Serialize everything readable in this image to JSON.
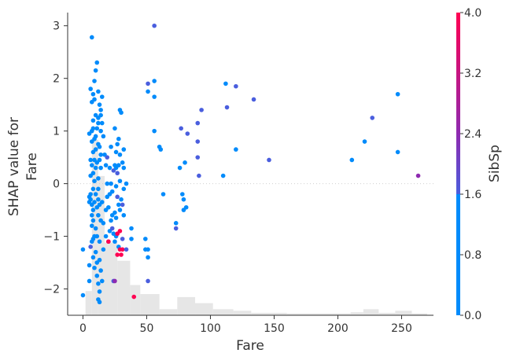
{
  "chart_data": {
    "type": "scatter",
    "xlabel": "Fare",
    "ylabel": "SHAP value for\nFare",
    "xlim": [
      -12,
      275
    ],
    "ylim": [
      -2.5,
      3.25
    ],
    "xticks": [
      0,
      50,
      100,
      150,
      200,
      250
    ],
    "yticks": [
      -2,
      -1,
      0,
      1,
      2,
      3
    ],
    "zero_line": true,
    "histogram_background": true,
    "colorbar": {
      "label": "SibSp",
      "min": 0.0,
      "max": 4.0,
      "ticks": [
        "0.0",
        "0.8",
        "1.6",
        "2.4",
        "3.2",
        "4.0"
      ],
      "colors": [
        "#008bfb",
        "#4a5ede",
        "#8e2ab0",
        "#ff0052"
      ]
    },
    "histogram": {
      "bins": [
        [
          2,
          7,
          0.08
        ],
        [
          7,
          12,
          0.58
        ],
        [
          12,
          17,
          0.46
        ],
        [
          17,
          27,
          0.24
        ],
        [
          27,
          37,
          0.18
        ],
        [
          37,
          45,
          0.1
        ],
        [
          45,
          60,
          0.07
        ],
        [
          60,
          74,
          0.02
        ],
        [
          74,
          88,
          0.06
        ],
        [
          88,
          102,
          0.04
        ],
        [
          102,
          118,
          0.02
        ],
        [
          118,
          132,
          0.015
        ],
        [
          132,
          160,
          0.008
        ],
        [
          160,
          210,
          0.006
        ],
        [
          210,
          220,
          0.01
        ],
        [
          220,
          232,
          0.02
        ],
        [
          232,
          245,
          0.008
        ],
        [
          245,
          258,
          0.015
        ],
        [
          258,
          270,
          0.006
        ]
      ]
    },
    "points": [
      [
        0,
        -1.25,
        0
      ],
      [
        0,
        -2.12,
        0
      ],
      [
        5,
        -0.25,
        0
      ],
      [
        5,
        0.95,
        0
      ],
      [
        5,
        -1.85,
        0
      ],
      [
        5,
        -0.35,
        0
      ],
      [
        5,
        -1.55,
        0
      ],
      [
        6,
        0.45,
        0
      ],
      [
        6,
        0.15,
        0
      ],
      [
        6,
        -0.3,
        0
      ],
      [
        6,
        1.8,
        0
      ],
      [
        6,
        -0.2,
        0
      ],
      [
        6,
        -1.2,
        1
      ],
      [
        7,
        2.78,
        0
      ],
      [
        7,
        1.55,
        0
      ],
      [
        7,
        0.8,
        0
      ],
      [
        7,
        0.35,
        0
      ],
      [
        7,
        -0.4,
        0
      ],
      [
        7,
        -1.1,
        0
      ],
      [
        7,
        -0.6,
        0
      ],
      [
        7,
        1.0,
        0
      ],
      [
        7,
        -0.8,
        0
      ],
      [
        8,
        1.7,
        0
      ],
      [
        8,
        1.2,
        0
      ],
      [
        8,
        0.6,
        0
      ],
      [
        8,
        -0.1,
        0
      ],
      [
        8,
        -0.5,
        0
      ],
      [
        8,
        -1.4,
        0
      ],
      [
        8,
        0.2,
        0
      ],
      [
        8,
        -0.7,
        0
      ],
      [
        8,
        1.05,
        0
      ],
      [
        8,
        -1.05,
        0
      ],
      [
        9,
        1.95,
        0
      ],
      [
        9,
        1.6,
        0
      ],
      [
        9,
        0.85,
        0
      ],
      [
        9,
        0.45,
        0
      ],
      [
        9,
        -0.35,
        0
      ],
      [
        9,
        -1.0,
        0
      ],
      [
        9,
        -1.6,
        0
      ],
      [
        9,
        0.05,
        0
      ],
      [
        10,
        2.15,
        0
      ],
      [
        10,
        1.3,
        0
      ],
      [
        10,
        0.9,
        0
      ],
      [
        10,
        0.3,
        0
      ],
      [
        10,
        -0.2,
        0
      ],
      [
        10,
        -0.85,
        0
      ],
      [
        10,
        -1.3,
        0
      ],
      [
        10,
        0.65,
        0
      ],
      [
        11,
        2.3,
        0
      ],
      [
        11,
        1.05,
        0
      ],
      [
        11,
        0.4,
        0
      ],
      [
        11,
        -0.45,
        0
      ],
      [
        11,
        -1.0,
        0
      ],
      [
        11,
        -1.75,
        0
      ],
      [
        11,
        -1.5,
        0
      ],
      [
        12,
        1.75,
        0
      ],
      [
        12,
        1.25,
        0
      ],
      [
        12,
        1.15,
        0
      ],
      [
        12,
        0.75,
        0
      ],
      [
        12,
        0.1,
        0
      ],
      [
        12,
        -0.3,
        0
      ],
      [
        12,
        -0.6,
        0
      ],
      [
        12,
        -1.9,
        0
      ],
      [
        12,
        -2.2,
        0
      ],
      [
        12,
        -0.1,
        0
      ],
      [
        13,
        1.5,
        0
      ],
      [
        13,
        0.7,
        0
      ],
      [
        13,
        -0.4,
        0
      ],
      [
        13,
        -1.1,
        0
      ],
      [
        13,
        -2.25,
        0
      ],
      [
        13,
        -1.45,
        0
      ],
      [
        13,
        -2.05,
        0
      ],
      [
        13,
        0.45,
        0
      ],
      [
        14,
        1.4,
        0
      ],
      [
        14,
        1.3,
        0
      ],
      [
        14,
        1.0,
        0
      ],
      [
        14,
        0.3,
        0
      ],
      [
        14,
        -0.7,
        0
      ],
      [
        14,
        -1.65,
        0
      ],
      [
        14,
        0.55,
        0
      ],
      [
        15,
        1.65,
        0
      ],
      [
        15,
        1.15,
        0
      ],
      [
        15,
        -0.35,
        0
      ],
      [
        15,
        -1.85,
        0
      ],
      [
        16,
        0.9,
        0
      ],
      [
        16,
        -0.75,
        0
      ],
      [
        16,
        -1.25,
        0
      ],
      [
        17,
        0.55,
        0
      ],
      [
        18,
        0.35,
        0
      ],
      [
        18,
        -0.5,
        0
      ],
      [
        18,
        -1.0,
        0
      ],
      [
        19,
        0.5,
        1
      ],
      [
        19,
        0.0,
        0
      ],
      [
        19,
        -0.25,
        0
      ],
      [
        20,
        -0.45,
        0
      ],
      [
        20,
        -1.1,
        1
      ],
      [
        20,
        -1.1,
        3
      ],
      [
        21,
        0.3,
        0
      ],
      [
        21,
        -0.2,
        0
      ],
      [
        21,
        -0.9,
        0
      ],
      [
        22,
        0.7,
        0
      ],
      [
        22,
        0.0,
        0
      ],
      [
        22,
        -0.7,
        0
      ],
      [
        23,
        -0.6,
        0
      ],
      [
        23,
        -0.15,
        0
      ],
      [
        23,
        -0.85,
        1
      ],
      [
        24,
        0.25,
        1
      ],
      [
        24,
        -0.95,
        0
      ],
      [
        24,
        -1.85,
        1
      ],
      [
        25,
        1.05,
        0
      ],
      [
        25,
        0.35,
        0
      ],
      [
        25,
        -0.55,
        0
      ],
      [
        25,
        -1.1,
        0
      ],
      [
        25,
        -1.85,
        2
      ],
      [
        26,
        0.6,
        0
      ],
      [
        26,
        0.3,
        0
      ],
      [
        26,
        -0.05,
        0
      ],
      [
        26,
        -0.65,
        0
      ],
      [
        26,
        -1.0,
        0
      ],
      [
        27,
        0.75,
        0
      ],
      [
        27,
        0.2,
        1
      ],
      [
        27,
        -0.25,
        1
      ],
      [
        27,
        -0.95,
        3
      ],
      [
        27,
        -1.35,
        3
      ],
      [
        28,
        0.85,
        0
      ],
      [
        28,
        0.35,
        0
      ],
      [
        28,
        -0.4,
        0
      ],
      [
        28,
        -1.2,
        0
      ],
      [
        29,
        1.4,
        0
      ],
      [
        29,
        0.55,
        0
      ],
      [
        29,
        0.05,
        0
      ],
      [
        29,
        -0.5,
        0
      ],
      [
        29,
        -0.9,
        3
      ],
      [
        29,
        -1.25,
        3
      ],
      [
        30,
        1.35,
        0
      ],
      [
        30,
        -0.3,
        0
      ],
      [
        30,
        -1.35,
        3
      ],
      [
        31,
        0.4,
        0
      ],
      [
        31,
        -0.4,
        1
      ],
      [
        31,
        -1.05,
        1
      ],
      [
        31,
        -1.25,
        3
      ],
      [
        32,
        0.65,
        0
      ],
      [
        32,
        0.3,
        0
      ],
      [
        32,
        -0.1,
        0
      ],
      [
        32,
        -0.6,
        0
      ],
      [
        34,
        -1.25,
        1
      ],
      [
        34,
        0.0,
        0
      ],
      [
        38,
        -0.85,
        0
      ],
      [
        38,
        -1.05,
        0
      ],
      [
        40,
        -2.15,
        3
      ],
      [
        49,
        -1.05,
        0
      ],
      [
        49,
        -1.25,
        0
      ],
      [
        51,
        1.9,
        1
      ],
      [
        51,
        1.75,
        0
      ],
      [
        51,
        -1.25,
        0
      ],
      [
        51,
        -1.4,
        0
      ],
      [
        51,
        -1.85,
        1
      ],
      [
        56,
        3.0,
        1
      ],
      [
        56,
        1.95,
        0
      ],
      [
        56,
        1.65,
        0
      ],
      [
        56,
        1.0,
        0
      ],
      [
        60,
        0.7,
        0
      ],
      [
        61,
        0.65,
        0
      ],
      [
        63,
        -0.2,
        0
      ],
      [
        73,
        -0.75,
        0
      ],
      [
        73,
        -0.85,
        1
      ],
      [
        76,
        0.3,
        0
      ],
      [
        77,
        1.05,
        1
      ],
      [
        78,
        -0.2,
        0
      ],
      [
        79,
        -0.3,
        0
      ],
      [
        79,
        -0.5,
        0
      ],
      [
        80,
        0.4,
        0
      ],
      [
        81,
        -0.45,
        0
      ],
      [
        82,
        0.95,
        1
      ],
      [
        90,
        1.15,
        1
      ],
      [
        90,
        0.8,
        1
      ],
      [
        90,
        0.5,
        1
      ],
      [
        91,
        0.15,
        1
      ],
      [
        93,
        1.4,
        1
      ],
      [
        110,
        0.15,
        0
      ],
      [
        112,
        1.9,
        0
      ],
      [
        113,
        1.45,
        1
      ],
      [
        120,
        1.85,
        1
      ],
      [
        120,
        0.65,
        0
      ],
      [
        134,
        1.6,
        1
      ],
      [
        146,
        0.45,
        1
      ],
      [
        211,
        0.45,
        0
      ],
      [
        221,
        0.8,
        0
      ],
      [
        227,
        1.25,
        1
      ],
      [
        247,
        1.7,
        0
      ],
      [
        247,
        0.6,
        0
      ],
      [
        263,
        0.15,
        2
      ]
    ]
  }
}
